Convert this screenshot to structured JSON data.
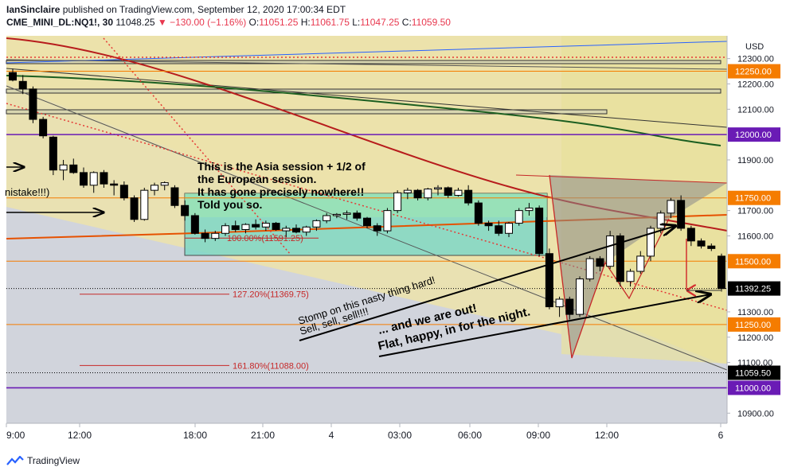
{
  "header": {
    "publisher": "IanSinclaire",
    "published_text": "published on TradingView.com, September 12, 2020 17:00:34 EDT",
    "symbol": "CME_MINI_DL:NQ1!, 30",
    "last": "11048.25",
    "change": "−130.00 (−1.16%)",
    "o_label": "O:",
    "o": "11051.25",
    "h_label": "H:",
    "h": "11061.75",
    "l_label": "L:",
    "l": "11047.25",
    "c_label": "C:",
    "c": "11059.50"
  },
  "footer": {
    "brand": "TradingView"
  },
  "colors": {
    "up": "#ffffff",
    "down": "#000000",
    "red_level": "#e8384f",
    "orange_level": "#f57c00",
    "purple_level": "#6a1bb5",
    "fib": "#c62828"
  },
  "chart_data": {
    "type": "candlestick",
    "currency": "USD",
    "ylim": [
      10860,
      12390
    ],
    "y_ticks": [
      "12300.00",
      "12200.00",
      "12100.00",
      "11900.00",
      "11700.00",
      "11600.00",
      "11300.00",
      "11200.00",
      "11100.00",
      "11000.00",
      "10900.00"
    ],
    "x_ticks": [
      "9:00",
      "12:00",
      "18:00",
      "21:00",
      "4",
      "03:00",
      "06:00",
      "09:00",
      "12:00",
      "6"
    ],
    "price_labels": [
      {
        "text": "12250.00",
        "value": 12250,
        "style": "orange"
      },
      {
        "text": "12000.00",
        "value": 12000,
        "style": "purple"
      },
      {
        "text": "11750.00",
        "value": 11750,
        "style": "orange"
      },
      {
        "text": "11500.00",
        "value": 11500,
        "style": "orange"
      },
      {
        "text": "11392.25",
        "value": 11392.25,
        "style": "black"
      },
      {
        "text": "11250.00",
        "value": 11250,
        "style": "orange"
      },
      {
        "text": "11059.50",
        "value": 11059.5,
        "style": "black"
      },
      {
        "text": "11000.00",
        "value": 11000,
        "style": "purple"
      }
    ],
    "fib_labels": [
      {
        "text": "100.00%(11591.25)",
        "value": 11591.25
      },
      {
        "text": "127.20%(11369.75)",
        "value": 11369.75
      },
      {
        "text": "161.80%(11088.00)",
        "value": 11088.0
      }
    ],
    "annotations": {
      "asia": [
        "This is the Asia session + 1/2 of",
        "the European session.",
        "It has gone precisely nowhere!!",
        "Told you so."
      ],
      "mistake": "nistake!!!)",
      "stomp": [
        "Stomp on this nasty thing hard!",
        "Sell, sell, sell!!!!"
      ],
      "out": [
        "... and we are out!",
        "Flat, happy, in for the night."
      ]
    },
    "candles": [
      [
        12245,
        12260,
        12210,
        12215
      ],
      [
        12210,
        12235,
        12160,
        12180
      ],
      [
        12180,
        12190,
        12045,
        12060
      ],
      [
        12060,
        12070,
        11985,
        11995
      ],
      [
        11990,
        11995,
        11840,
        11860
      ],
      [
        11860,
        11900,
        11820,
        11880
      ],
      [
        11880,
        11905,
        11845,
        11850
      ],
      [
        11850,
        11870,
        11790,
        11800
      ],
      [
        11800,
        11855,
        11770,
        11850
      ],
      [
        11850,
        11860,
        11790,
        11805
      ],
      [
        11805,
        11820,
        11760,
        11800
      ],
      [
        11800,
        11815,
        11740,
        11750
      ],
      [
        11750,
        11760,
        11655,
        11665
      ],
      [
        11665,
        11790,
        11660,
        11780
      ],
      [
        11780,
        11810,
        11760,
        11800
      ],
      [
        11800,
        11815,
        11780,
        11810
      ],
      [
        11790,
        11800,
        11710,
        11720
      ],
      [
        11720,
        11740,
        11660,
        11680
      ],
      [
        11680,
        11690,
        11605,
        11610
      ],
      [
        11610,
        11625,
        11575,
        11590
      ],
      [
        11590,
        11620,
        11580,
        11610
      ],
      [
        11610,
        11650,
        11600,
        11640
      ],
      [
        11640,
        11660,
        11615,
        11625
      ],
      [
        11625,
        11650,
        11610,
        11645
      ],
      [
        11645,
        11665,
        11625,
        11635
      ],
      [
        11635,
        11660,
        11620,
        11650
      ],
      [
        11650,
        11655,
        11620,
        11625
      ],
      [
        11620,
        11640,
        11595,
        11630
      ],
      [
        11630,
        11645,
        11610,
        11615
      ],
      [
        11615,
        11640,
        11600,
        11635
      ],
      [
        11635,
        11665,
        11620,
        11660
      ],
      [
        11660,
        11690,
        11650,
        11680
      ],
      [
        11680,
        11690,
        11670,
        11685
      ],
      [
        11685,
        11700,
        11665,
        11690
      ],
      [
        11690,
        11700,
        11660,
        11670
      ],
      [
        11670,
        11675,
        11630,
        11640
      ],
      [
        11640,
        11650,
        11600,
        11620
      ],
      [
        11620,
        11710,
        11610,
        11700
      ],
      [
        11700,
        11780,
        11690,
        11770
      ],
      [
        11770,
        11790,
        11745,
        11780
      ],
      [
        11780,
        11785,
        11740,
        11750
      ],
      [
        11750,
        11790,
        11740,
        11785
      ],
      [
        11785,
        11800,
        11760,
        11790
      ],
      [
        11790,
        11795,
        11750,
        11760
      ],
      [
        11760,
        11790,
        11755,
        11780
      ],
      [
        11780,
        11800,
        11720,
        11730
      ],
      [
        11730,
        11740,
        11640,
        11650
      ],
      [
        11650,
        11660,
        11620,
        11640
      ],
      [
        11640,
        11660,
        11600,
        11610
      ],
      [
        11610,
        11655,
        11595,
        11650
      ],
      [
        11650,
        11710,
        11640,
        11700
      ],
      [
        11700,
        11730,
        11680,
        11710
      ],
      [
        11710,
        11720,
        11520,
        11530
      ],
      [
        11530,
        11550,
        11310,
        11320
      ],
      [
        11320,
        11360,
        11280,
        11350
      ],
      [
        11350,
        11360,
        11270,
        11290
      ],
      [
        11290,
        11440,
        11280,
        11430
      ],
      [
        11430,
        11520,
        11420,
        11510
      ],
      [
        11510,
        11520,
        11460,
        11480
      ],
      [
        11480,
        11620,
        11470,
        11600
      ],
      [
        11600,
        11610,
        11400,
        11420
      ],
      [
        11420,
        11470,
        11400,
        11460
      ],
      [
        11460,
        11540,
        11450,
        11520
      ],
      [
        11520,
        11640,
        11500,
        11630
      ],
      [
        11630,
        11700,
        11610,
        11690
      ],
      [
        11690,
        11750,
        11670,
        11740
      ],
      [
        11740,
        11760,
        11620,
        11630
      ],
      [
        11630,
        11640,
        11560,
        11580
      ],
      [
        11580,
        11590,
        11550,
        11560
      ],
      [
        11560,
        11570,
        11540,
        11550
      ],
      [
        11520,
        11530,
        11380,
        11392
      ]
    ]
  }
}
